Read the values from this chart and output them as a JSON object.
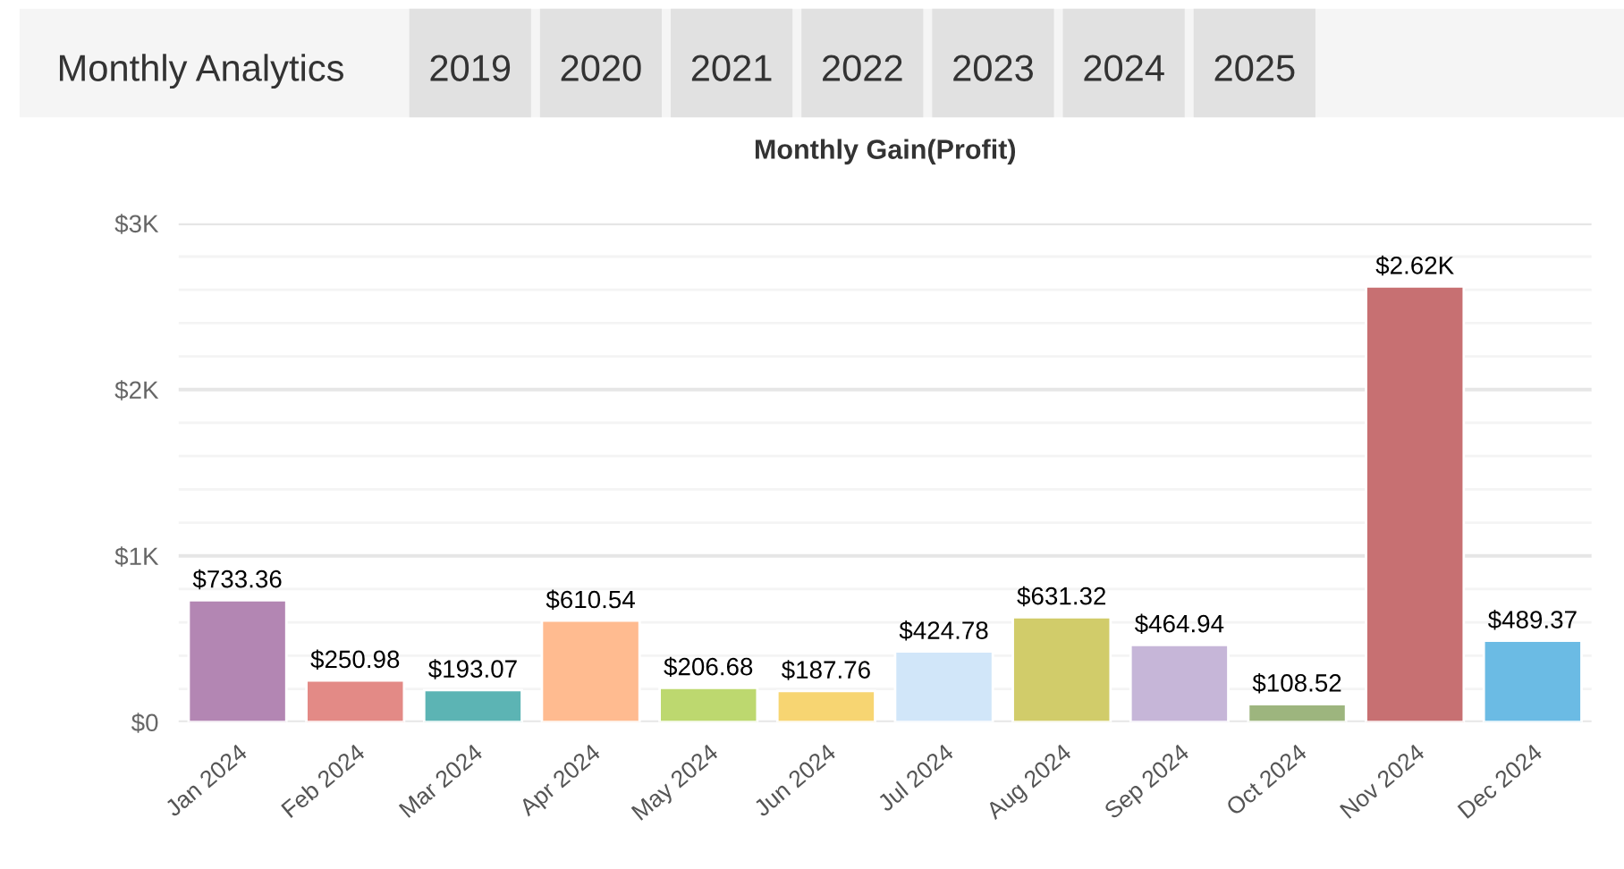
{
  "chart_data": {
    "type": "bar",
    "title": "Monthly Gain(Profit)",
    "annotations": [
      "Monthly Analytics",
      "2019",
      "2020",
      "2021",
      "2022",
      "2023",
      "2024",
      "2025"
    ],
    "categories": [
      "Jan 2024",
      "Feb 2024",
      "Mar 2024",
      "Apr 2024",
      "May 2024",
      "Jun 2024",
      "Jul 2024",
      "Aug 2024",
      "Sep 2024",
      "Oct 2024",
      "Nov 2024",
      "Dec 2024"
    ],
    "values": [
      733.36,
      250.98,
      193.07,
      610.54,
      206.68,
      187.76,
      424.78,
      631.32,
      464.94,
      108.52,
      2620,
      489.37
    ],
    "value_labels": [
      "$733.36",
      "$250.98",
      "$193.07",
      "$610.54",
      "$206.68",
      "$187.76",
      "$424.78",
      "$631.32",
      "$464.94",
      "$108.52",
      "$2.62K",
      "$489.37"
    ],
    "colors": [
      "#b386b3",
      "#e38a86",
      "#5cb4b4",
      "#ffbb90",
      "#bdd86f",
      "#f7d572",
      "#d1e6f9",
      "#d1cc6a",
      "#c6b6d8",
      "#9db57e",
      "#c77072",
      "#6bbbe4"
    ],
    "ylim": [
      0,
      3000
    ],
    "yticks": [
      {
        "value": 0,
        "label": "$0"
      },
      {
        "value": 200,
        "label": null
      },
      {
        "value": 400,
        "label": null
      },
      {
        "value": 600,
        "label": null
      },
      {
        "value": 800,
        "label": null
      },
      {
        "value": 1000,
        "label": "$1K"
      },
      {
        "value": 1200,
        "label": null
      },
      {
        "value": 1400,
        "label": null
      },
      {
        "value": 1600,
        "label": null
      },
      {
        "value": 1800,
        "label": null
      },
      {
        "value": 2000,
        "label": "$2K"
      },
      {
        "value": 2200,
        "label": null
      },
      {
        "value": 2400,
        "label": null
      },
      {
        "value": 2600,
        "label": null
      },
      {
        "value": 2800,
        "label": null
      },
      {
        "value": 3000,
        "label": "$3K"
      }
    ],
    "grid": "y",
    "legend": false
  }
}
